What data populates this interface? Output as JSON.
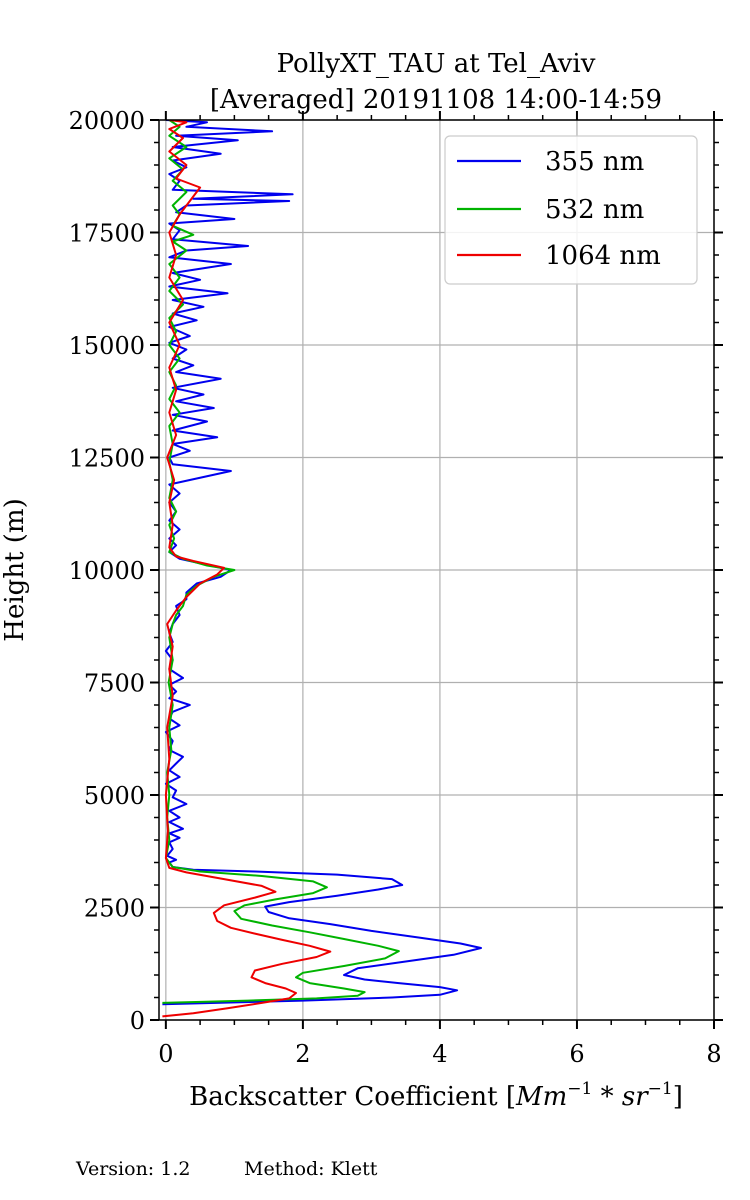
{
  "chart_data": {
    "type": "line",
    "title_line1": "PollyXT_TAU at Tel_Aviv",
    "title_line2": "[Averaged] 20191108 14:00-14:59",
    "xlabel_text": "Backscatter Coefficient [",
    "xlabel_unit_base1": "Mm",
    "xlabel_unit_exp1": "−1",
    "xlabel_unit_mid": " * ",
    "xlabel_unit_base2": "sr",
    "xlabel_unit_exp2": "−1",
    "xlabel_close": "]",
    "ylabel": "Height (m)",
    "xlim": [
      -0.1,
      8
    ],
    "ylim": [
      0,
      20000
    ],
    "xticks": [
      0,
      2,
      4,
      6,
      8
    ],
    "xtick_labels": [
      "0",
      "2",
      "4",
      "6",
      "8"
    ],
    "yticks": [
      0,
      2500,
      5000,
      7500,
      10000,
      12500,
      15000,
      17500,
      20000
    ],
    "ytick_labels": [
      "0",
      "2500",
      "5000",
      "7500",
      "10000",
      "12500",
      "15000",
      "17500",
      "20000"
    ],
    "grid": true,
    "legend_position": "top-right",
    "series": [
      {
        "name": "355 nm",
        "color": "#0000ee",
        "points": [
          [
            -0.05,
            350
          ],
          [
            2.0,
            430
          ],
          [
            3.3,
            500
          ],
          [
            4.0,
            560
          ],
          [
            4.25,
            660
          ],
          [
            4.0,
            730
          ],
          [
            3.4,
            820
          ],
          [
            2.9,
            900
          ],
          [
            2.6,
            1000
          ],
          [
            2.8,
            1150
          ],
          [
            3.5,
            1300
          ],
          [
            4.2,
            1450
          ],
          [
            4.6,
            1600
          ],
          [
            4.3,
            1700
          ],
          [
            3.7,
            1830
          ],
          [
            3.0,
            1980
          ],
          [
            2.4,
            2130
          ],
          [
            1.8,
            2260
          ],
          [
            1.5,
            2400
          ],
          [
            1.45,
            2520
          ],
          [
            1.8,
            2620
          ],
          [
            2.5,
            2760
          ],
          [
            3.1,
            2900
          ],
          [
            3.45,
            3000
          ],
          [
            3.3,
            3130
          ],
          [
            2.5,
            3230
          ],
          [
            1.3,
            3300
          ],
          [
            0.4,
            3340
          ],
          [
            0.1,
            3400
          ],
          [
            0.05,
            3500
          ],
          [
            0.15,
            3560
          ],
          [
            0.02,
            3650
          ],
          [
            0.1,
            3800
          ],
          [
            0.05,
            3950
          ],
          [
            0.2,
            4050
          ],
          [
            0.05,
            4150
          ],
          [
            0.25,
            4250
          ],
          [
            0.05,
            4400
          ],
          [
            0.2,
            4500
          ],
          [
            0.05,
            4650
          ],
          [
            0.3,
            4800
          ],
          [
            0.1,
            4950
          ],
          [
            0.15,
            5100
          ],
          [
            0.0,
            5250
          ],
          [
            0.2,
            5400
          ],
          [
            0.05,
            5550
          ],
          [
            0.15,
            5700
          ],
          [
            0.25,
            5850
          ],
          [
            0.05,
            6000
          ],
          [
            0.1,
            6200
          ],
          [
            0.0,
            6400
          ],
          [
            0.2,
            6550
          ],
          [
            0.05,
            6700
          ],
          [
            0.1,
            6850
          ],
          [
            0.35,
            7000
          ],
          [
            0.05,
            7150
          ],
          [
            0.15,
            7300
          ],
          [
            0.05,
            7450
          ],
          [
            0.25,
            7600
          ],
          [
            0.05,
            7800
          ],
          [
            0.1,
            8000
          ],
          [
            0.0,
            8200
          ],
          [
            0.1,
            8400
          ],
          [
            0.05,
            8600
          ],
          [
            0.1,
            8800
          ],
          [
            0.2,
            9000
          ],
          [
            0.15,
            9200
          ],
          [
            0.3,
            9350
          ],
          [
            0.3,
            9500
          ],
          [
            0.45,
            9700
          ],
          [
            0.8,
            9850
          ],
          [
            0.95,
            10000
          ],
          [
            0.5,
            10150
          ],
          [
            0.2,
            10250
          ],
          [
            0.05,
            10400
          ],
          [
            0.15,
            10550
          ],
          [
            0.05,
            10700
          ],
          [
            0.2,
            10900
          ],
          [
            0.05,
            11100
          ],
          [
            0.15,
            11300
          ],
          [
            0.05,
            11500
          ],
          [
            0.2,
            11700
          ],
          [
            0.05,
            11900
          ],
          [
            0.95,
            12200
          ],
          [
            0.1,
            12350
          ],
          [
            0.05,
            12500
          ],
          [
            0.35,
            12650
          ],
          [
            0.1,
            12800
          ],
          [
            0.75,
            12950
          ],
          [
            0.1,
            13100
          ],
          [
            0.6,
            13300
          ],
          [
            0.1,
            13450
          ],
          [
            0.7,
            13600
          ],
          [
            0.15,
            13750
          ],
          [
            0.55,
            13900
          ],
          [
            0.1,
            14050
          ],
          [
            0.8,
            14250
          ],
          [
            0.15,
            14400
          ],
          [
            0.4,
            14550
          ],
          [
            0.1,
            14700
          ],
          [
            0.3,
            14900
          ],
          [
            0.05,
            15050
          ],
          [
            0.35,
            15200
          ],
          [
            0.05,
            15400
          ],
          [
            0.45,
            15550
          ],
          [
            0.1,
            15700
          ],
          [
            0.55,
            15850
          ],
          [
            0.1,
            16000
          ],
          [
            0.9,
            16150
          ],
          [
            0.05,
            16300
          ],
          [
            0.5,
            16450
          ],
          [
            0.1,
            16600
          ],
          [
            0.95,
            16800
          ],
          [
            0.05,
            16950
          ],
          [
            0.3,
            17100
          ],
          [
            1.2,
            17200
          ],
          [
            0.1,
            17350
          ],
          [
            0.2,
            17550
          ],
          [
            0.05,
            17700
          ],
          [
            1.0,
            17800
          ],
          [
            0.15,
            17950
          ],
          [
            0.3,
            18100
          ],
          [
            1.8,
            18200
          ],
          [
            0.4,
            18250
          ],
          [
            1.85,
            18350
          ],
          [
            0.1,
            18450
          ],
          [
            0.2,
            18650
          ],
          [
            0.05,
            18800
          ],
          [
            0.3,
            18950
          ],
          [
            0.1,
            19100
          ],
          [
            0.8,
            19250
          ],
          [
            0.1,
            19400
          ],
          [
            1.05,
            19550
          ],
          [
            0.15,
            19650
          ],
          [
            1.55,
            19750
          ],
          [
            0.3,
            19850
          ],
          [
            0.6,
            19950
          ],
          [
            0.0,
            20000
          ]
        ]
      },
      {
        "name": "532 nm",
        "color": "#00b300",
        "points": [
          [
            -0.05,
            380
          ],
          [
            1.2,
            430
          ],
          [
            2.2,
            480
          ],
          [
            2.8,
            540
          ],
          [
            2.9,
            620
          ],
          [
            2.6,
            700
          ],
          [
            2.1,
            820
          ],
          [
            1.9,
            950
          ],
          [
            2.0,
            1050
          ],
          [
            2.6,
            1200
          ],
          [
            3.2,
            1370
          ],
          [
            3.4,
            1530
          ],
          [
            3.1,
            1650
          ],
          [
            2.6,
            1800
          ],
          [
            2.1,
            1950
          ],
          [
            1.55,
            2100
          ],
          [
            1.1,
            2250
          ],
          [
            1.0,
            2420
          ],
          [
            1.15,
            2550
          ],
          [
            1.6,
            2680
          ],
          [
            2.15,
            2820
          ],
          [
            2.35,
            2950
          ],
          [
            2.15,
            3080
          ],
          [
            1.4,
            3200
          ],
          [
            0.5,
            3300
          ],
          [
            0.1,
            3400
          ],
          [
            0.0,
            3600
          ],
          [
            0.05,
            4000
          ],
          [
            0.02,
            4500
          ],
          [
            0.05,
            5000
          ],
          [
            0.02,
            5500
          ],
          [
            0.08,
            6000
          ],
          [
            0.05,
            6500
          ],
          [
            0.1,
            7000
          ],
          [
            0.04,
            7500
          ],
          [
            0.1,
            8000
          ],
          [
            0.05,
            8500
          ],
          [
            0.1,
            8800
          ],
          [
            0.15,
            9000
          ],
          [
            0.25,
            9200
          ],
          [
            0.3,
            9450
          ],
          [
            0.45,
            9650
          ],
          [
            0.7,
            9850
          ],
          [
            1.0,
            10000
          ],
          [
            0.6,
            10100
          ],
          [
            0.25,
            10250
          ],
          [
            0.05,
            10400
          ],
          [
            0.12,
            10700
          ],
          [
            0.05,
            11000
          ],
          [
            0.15,
            11300
          ],
          [
            0.05,
            11600
          ],
          [
            0.1,
            12000
          ],
          [
            0.05,
            12400
          ],
          [
            0.1,
            12800
          ],
          [
            0.05,
            13200
          ],
          [
            0.2,
            13500
          ],
          [
            0.05,
            13800
          ],
          [
            0.15,
            14100
          ],
          [
            0.05,
            14400
          ],
          [
            0.2,
            14700
          ],
          [
            0.05,
            15000
          ],
          [
            0.15,
            15300
          ],
          [
            0.05,
            15600
          ],
          [
            0.25,
            15900
          ],
          [
            0.05,
            16200
          ],
          [
            0.2,
            16500
          ],
          [
            0.05,
            16800
          ],
          [
            0.3,
            17100
          ],
          [
            0.1,
            17300
          ],
          [
            0.4,
            17450
          ],
          [
            0.1,
            17650
          ],
          [
            0.2,
            17900
          ],
          [
            0.1,
            18100
          ],
          [
            0.3,
            18400
          ],
          [
            0.1,
            18650
          ],
          [
            0.25,
            18900
          ],
          [
            0.05,
            19150
          ],
          [
            0.3,
            19400
          ],
          [
            0.05,
            19650
          ],
          [
            0.2,
            19850
          ],
          [
            0.05,
            20000
          ]
        ]
      },
      {
        "name": "1064 nm",
        "color": "#ee0000",
        "points": [
          [
            -0.05,
            80
          ],
          [
            0.4,
            150
          ],
          [
            0.9,
            260
          ],
          [
            1.4,
            380
          ],
          [
            1.8,
            480
          ],
          [
            1.9,
            600
          ],
          [
            1.75,
            700
          ],
          [
            1.45,
            820
          ],
          [
            1.25,
            950
          ],
          [
            1.3,
            1100
          ],
          [
            1.7,
            1250
          ],
          [
            2.2,
            1400
          ],
          [
            2.4,
            1520
          ],
          [
            2.1,
            1650
          ],
          [
            1.7,
            1780
          ],
          [
            1.3,
            1920
          ],
          [
            0.95,
            2050
          ],
          [
            0.75,
            2200
          ],
          [
            0.7,
            2380
          ],
          [
            0.85,
            2550
          ],
          [
            1.3,
            2720
          ],
          [
            1.6,
            2850
          ],
          [
            1.4,
            2980
          ],
          [
            0.85,
            3130
          ],
          [
            0.3,
            3280
          ],
          [
            0.05,
            3380
          ],
          [
            0.0,
            3600
          ],
          [
            0.03,
            4200
          ],
          [
            0.0,
            5000
          ],
          [
            0.05,
            5800
          ],
          [
            0.02,
            6500
          ],
          [
            0.1,
            7200
          ],
          [
            0.05,
            7800
          ],
          [
            0.1,
            8300
          ],
          [
            0.02,
            8800
          ],
          [
            0.15,
            9100
          ],
          [
            0.3,
            9400
          ],
          [
            0.5,
            9700
          ],
          [
            0.75,
            9900
          ],
          [
            0.85,
            10050
          ],
          [
            0.4,
            10200
          ],
          [
            0.15,
            10300
          ],
          [
            0.05,
            10500
          ],
          [
            0.1,
            11000
          ],
          [
            0.05,
            11500
          ],
          [
            0.12,
            12000
          ],
          [
            0.02,
            12500
          ],
          [
            0.15,
            13000
          ],
          [
            0.05,
            13500
          ],
          [
            0.15,
            14000
          ],
          [
            0.05,
            14500
          ],
          [
            0.2,
            15000
          ],
          [
            0.05,
            15500
          ],
          [
            0.25,
            16000
          ],
          [
            0.05,
            16500
          ],
          [
            0.15,
            17000
          ],
          [
            0.05,
            17500
          ],
          [
            0.2,
            17900
          ],
          [
            0.5,
            18500
          ],
          [
            0.15,
            18700
          ],
          [
            0.3,
            19000
          ],
          [
            0.05,
            19300
          ],
          [
            0.25,
            19600
          ],
          [
            0.05,
            19800
          ],
          [
            0.3,
            19950
          ],
          [
            0.05,
            20000
          ]
        ]
      }
    ]
  },
  "footer": {
    "version_label": "Version: 1.2",
    "method_label": "Method: Klett"
  }
}
